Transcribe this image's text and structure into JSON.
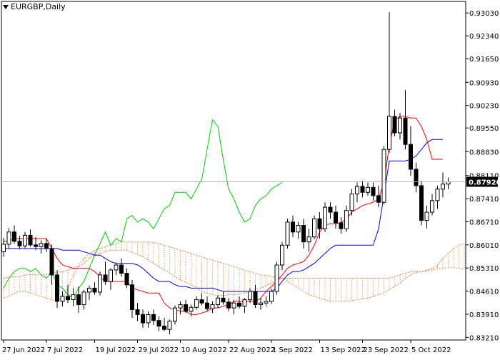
{
  "window": {
    "symbol": "EURGBP",
    "timeframe": "Daily",
    "title": "EURGBP,Daily"
  },
  "colors": {
    "background": "#ffffff",
    "candle_bull_fill": "#ffffff",
    "candle_bear_fill": "#000000",
    "candle_border": "#000000",
    "tenkan": "#ff0000",
    "kijun": "#0000ff",
    "chikou": "#00cc00",
    "cloud": "#e07b39",
    "current_price_line": "#b0b0b0",
    "price_label_bg": "#000000",
    "price_label_text": "#ffffff"
  },
  "chart_data": {
    "type": "candlestick",
    "indicator": "Ichimoku Kinko Hyo",
    "title": "EURGBP,Daily",
    "current_price": "0.87920",
    "y_ticks": [
      "0.93030",
      "0.92340",
      "0.91650",
      "0.90930",
      "0.90230",
      "0.89550",
      "0.88830",
      "0.88110",
      "0.87410",
      "0.86710",
      "0.86010",
      "0.85310",
      "0.84610",
      "0.83910",
      "0.83210"
    ],
    "x_ticks": [
      "27 Jun 2022",
      "7 Jul 2022",
      "19 Jul 2022",
      "29 Jul 2022",
      "10 Aug 2022",
      "22 Aug 2022",
      "1 Sep 2022",
      "13 Sep 2022",
      "23 Sep 2022",
      "5 Oct 2022"
    ],
    "ylim": [
      0.8313,
      0.9338
    ],
    "candles": [
      [
        0.858,
        0.8622,
        0.8565,
        0.8603
      ],
      [
        0.8603,
        0.8652,
        0.859,
        0.864
      ],
      [
        0.864,
        0.866,
        0.8605,
        0.8612
      ],
      [
        0.8612,
        0.8628,
        0.8588,
        0.8598
      ],
      [
        0.8598,
        0.864,
        0.859,
        0.863
      ],
      [
        0.863,
        0.8648,
        0.8595,
        0.8601
      ],
      [
        0.8601,
        0.8625,
        0.8585,
        0.8596
      ],
      [
        0.8596,
        0.8615,
        0.8575,
        0.8605
      ],
      [
        0.8605,
        0.862,
        0.858,
        0.859
      ],
      [
        0.859,
        0.8602,
        0.848,
        0.851
      ],
      [
        0.851,
        0.8525,
        0.841,
        0.843
      ],
      [
        0.843,
        0.846,
        0.8415,
        0.8445
      ],
      [
        0.8445,
        0.848,
        0.8425,
        0.8435
      ],
      [
        0.8435,
        0.847,
        0.8415,
        0.845
      ],
      [
        0.845,
        0.8475,
        0.8395,
        0.842
      ],
      [
        0.842,
        0.8465,
        0.8405,
        0.8458
      ],
      [
        0.8458,
        0.8478,
        0.8435,
        0.847
      ],
      [
        0.847,
        0.8488,
        0.845,
        0.8458
      ],
      [
        0.8458,
        0.852,
        0.8448,
        0.851
      ],
      [
        0.851,
        0.855,
        0.848,
        0.849
      ],
      [
        0.849,
        0.853,
        0.8465,
        0.8525
      ],
      [
        0.8525,
        0.8548,
        0.851,
        0.854
      ],
      [
        0.854,
        0.856,
        0.8505,
        0.8515
      ],
      [
        0.8515,
        0.853,
        0.847,
        0.848
      ],
      [
        0.848,
        0.8495,
        0.838,
        0.8405
      ],
      [
        0.8405,
        0.8425,
        0.837,
        0.839
      ],
      [
        0.839,
        0.8405,
        0.835,
        0.8365
      ],
      [
        0.8365,
        0.84,
        0.835,
        0.839
      ],
      [
        0.839,
        0.8405,
        0.8358,
        0.8372
      ],
      [
        0.8372,
        0.8385,
        0.834,
        0.8355
      ],
      [
        0.8355,
        0.838,
        0.834,
        0.8345
      ],
      [
        0.8345,
        0.8375,
        0.833,
        0.837
      ],
      [
        0.837,
        0.8418,
        0.836,
        0.841
      ],
      [
        0.841,
        0.843,
        0.839,
        0.842
      ],
      [
        0.842,
        0.8435,
        0.8395,
        0.84
      ],
      [
        0.84,
        0.842,
        0.8385,
        0.8412
      ],
      [
        0.8412,
        0.8445,
        0.8405,
        0.8435
      ],
      [
        0.8435,
        0.8455,
        0.8418,
        0.8425
      ],
      [
        0.8425,
        0.8445,
        0.84,
        0.8408
      ],
      [
        0.8408,
        0.843,
        0.8395,
        0.842
      ],
      [
        0.842,
        0.8448,
        0.841,
        0.844
      ],
      [
        0.844,
        0.8458,
        0.842,
        0.8428
      ],
      [
        0.8428,
        0.844,
        0.84,
        0.841
      ],
      [
        0.841,
        0.8435,
        0.839,
        0.8425
      ],
      [
        0.8425,
        0.8445,
        0.8408,
        0.8415
      ],
      [
        0.8415,
        0.844,
        0.8395,
        0.8435
      ],
      [
        0.8435,
        0.847,
        0.8425,
        0.846
      ],
      [
        0.846,
        0.848,
        0.841,
        0.842
      ],
      [
        0.842,
        0.844,
        0.8405,
        0.8425
      ],
      [
        0.8425,
        0.8445,
        0.8415,
        0.843
      ],
      [
        0.843,
        0.8468,
        0.8422,
        0.846
      ],
      [
        0.846,
        0.855,
        0.845,
        0.854
      ],
      [
        0.854,
        0.861,
        0.8525,
        0.86
      ],
      [
        0.86,
        0.868,
        0.859,
        0.867
      ],
      [
        0.867,
        0.869,
        0.8625,
        0.864
      ],
      [
        0.864,
        0.867,
        0.862,
        0.866
      ],
      [
        0.866,
        0.868,
        0.859,
        0.861
      ],
      [
        0.861,
        0.865,
        0.858,
        0.8625
      ],
      [
        0.8625,
        0.869,
        0.8618,
        0.868
      ],
      [
        0.868,
        0.87,
        0.862,
        0.865
      ],
      [
        0.865,
        0.873,
        0.864,
        0.8715
      ],
      [
        0.8715,
        0.873,
        0.868,
        0.87
      ],
      [
        0.87,
        0.872,
        0.865,
        0.8668
      ],
      [
        0.8668,
        0.8685,
        0.8635,
        0.865
      ],
      [
        0.865,
        0.872,
        0.864,
        0.8705
      ],
      [
        0.8705,
        0.877,
        0.869,
        0.8755
      ],
      [
        0.8755,
        0.879,
        0.873,
        0.8778
      ],
      [
        0.8778,
        0.8795,
        0.8745,
        0.876
      ],
      [
        0.876,
        0.879,
        0.875,
        0.8775
      ],
      [
        0.8775,
        0.879,
        0.8735,
        0.875
      ],
      [
        0.875,
        0.878,
        0.8715,
        0.873
      ],
      [
        0.873,
        0.89,
        0.8725,
        0.889
      ],
      [
        0.889,
        0.9305,
        0.888,
        0.899
      ],
      [
        0.899,
        0.901,
        0.893,
        0.894
      ],
      [
        0.894,
        0.9,
        0.892,
        0.8985
      ],
      [
        0.8985,
        0.907,
        0.889,
        0.8905
      ],
      [
        0.8905,
        0.896,
        0.881,
        0.883
      ],
      [
        0.883,
        0.885,
        0.876,
        0.878
      ],
      [
        0.878,
        0.8795,
        0.866,
        0.8675
      ],
      [
        0.8675,
        0.872,
        0.865,
        0.87
      ],
      [
        0.87,
        0.8755,
        0.869,
        0.8735
      ],
      [
        0.8735,
        0.878,
        0.871,
        0.877
      ],
      [
        0.877,
        0.882,
        0.8745,
        0.8785
      ],
      [
        0.8785,
        0.8805,
        0.877,
        0.8792
      ]
    ],
    "tenkan_sen": [
      0.8612,
      0.8612,
      0.862,
      0.862,
      0.862,
      0.862,
      0.862,
      0.862,
      0.862,
      0.859,
      0.856,
      0.854,
      0.8535,
      0.853,
      0.853,
      0.853,
      0.853,
      0.852,
      0.8505,
      0.849,
      0.849,
      0.849,
      0.849,
      0.849,
      0.847,
      0.8465,
      0.846,
      0.8455,
      0.8455,
      0.8455,
      0.8425,
      0.841,
      0.8405,
      0.84,
      0.84,
      0.839,
      0.839,
      0.8395,
      0.84,
      0.841,
      0.841,
      0.8415,
      0.842,
      0.843,
      0.843,
      0.843,
      0.843,
      0.843,
      0.844,
      0.846,
      0.8475,
      0.849,
      0.851,
      0.853,
      0.854,
      0.8545,
      0.855,
      0.857,
      0.86,
      0.864,
      0.866,
      0.8665,
      0.8665,
      0.8668,
      0.868,
      0.87,
      0.871,
      0.872,
      0.8725,
      0.873,
      0.874,
      0.879,
      0.89,
      0.898,
      0.899,
      0.899,
      0.8985,
      0.8985,
      0.896,
      0.892,
      0.886,
      0.886,
      0.886
    ],
    "kijun_sen": [
      0.859,
      0.859,
      0.859,
      0.859,
      0.859,
      0.859,
      0.859,
      0.859,
      0.859,
      0.859,
      0.859,
      0.8585,
      0.8585,
      0.8585,
      0.8585,
      0.858,
      0.8575,
      0.857,
      0.857,
      0.856,
      0.855,
      0.8545,
      0.8545,
      0.8545,
      0.8545,
      0.854,
      0.853,
      0.8515,
      0.85,
      0.849,
      0.849,
      0.849,
      0.848,
      0.8475,
      0.8475,
      0.847,
      0.847,
      0.847,
      0.847,
      0.847,
      0.8465,
      0.846,
      0.846,
      0.846,
      0.846,
      0.846,
      0.846,
      0.846,
      0.846,
      0.846,
      0.846,
      0.847,
      0.849,
      0.851,
      0.852,
      0.852,
      0.8525,
      0.8535,
      0.8545,
      0.856,
      0.8575,
      0.859,
      0.86,
      0.86,
      0.86,
      0.86,
      0.86,
      0.86,
      0.86,
      0.86,
      0.865,
      0.875,
      0.8855,
      0.8855,
      0.8855,
      0.8855,
      0.886,
      0.887,
      0.889,
      0.891,
      0.892,
      0.892,
      0.892
    ],
    "chikou_span": [
      0.847,
      0.85,
      0.852,
      0.853,
      0.853,
      0.852,
      0.853,
      0.851,
      0.85,
      0.852,
      0.848,
      0.847,
      0.845,
      0.844,
      0.847,
      0.849,
      0.853,
      0.857,
      0.8605,
      0.864,
      0.86,
      0.862,
      0.861,
      0.868,
      0.869,
      0.867,
      0.868,
      0.867,
      0.865,
      0.868,
      0.871,
      0.872,
      0.876,
      0.876,
      0.876,
      0.874,
      0.877,
      0.88,
      0.889,
      0.898,
      0.896,
      0.886,
      0.877,
      0.874,
      0.87,
      0.867,
      0.868,
      0.872,
      0.874,
      0.875,
      0.877,
      0.878,
      0.879
    ],
    "senkou_span_a": [
      0.85,
      0.8502,
      0.8505,
      0.8505,
      0.851,
      0.8512,
      0.851,
      0.851,
      0.8512,
      0.8515,
      0.8518,
      0.852,
      0.8525,
      0.853,
      0.8535,
      0.8545,
      0.856,
      0.857,
      0.8575,
      0.858,
      0.8585,
      0.8585,
      0.8585,
      0.8585,
      0.8578,
      0.8572,
      0.8565,
      0.8555,
      0.8545,
      0.8535,
      0.8525,
      0.8515,
      0.8505,
      0.8495,
      0.8488,
      0.848,
      0.8472,
      0.846,
      0.8455,
      0.845,
      0.8448,
      0.8448,
      0.845,
      0.845,
      0.8452,
      0.8455,
      0.846,
      0.8465,
      0.847,
      0.8478,
      0.8485,
      0.8492,
      0.85,
      0.85,
      0.85,
      0.85,
      0.85,
      0.85,
      0.85,
      0.85,
      0.85,
      0.85,
      0.85,
      0.85,
      0.85,
      0.85,
      0.85,
      0.85,
      0.85,
      0.85,
      0.85,
      0.85,
      0.85,
      0.8505,
      0.851,
      0.8515,
      0.852,
      0.852,
      0.852,
      0.8525,
      0.853,
      0.854,
      0.856,
      0.8575,
      0.859,
      0.86,
      0.8605,
      0.861,
      0.862,
      0.864,
      0.8655,
      0.8665,
      0.867
    ],
    "senkou_span_b": [
      0.844,
      0.8445,
      0.8455,
      0.846,
      0.846,
      0.8455,
      0.845,
      0.8445,
      0.844,
      0.8435,
      0.843,
      0.844,
      0.847,
      0.8505,
      0.854,
      0.856,
      0.8575,
      0.8585,
      0.859,
      0.8595,
      0.86,
      0.8605,
      0.861,
      0.861,
      0.861,
      0.861,
      0.861,
      0.861,
      0.8608,
      0.8605,
      0.86,
      0.8595,
      0.859,
      0.8585,
      0.858,
      0.8575,
      0.857,
      0.8565,
      0.856,
      0.8555,
      0.855,
      0.8545,
      0.854,
      0.8535,
      0.853,
      0.8525,
      0.852,
      0.8515,
      0.851,
      0.8508,
      0.8505,
      0.8502,
      0.85,
      0.849,
      0.848,
      0.847,
      0.846,
      0.845,
      0.8445,
      0.844,
      0.8435,
      0.843,
      0.843,
      0.843,
      0.843,
      0.8432,
      0.8435,
      0.8438,
      0.844,
      0.8445,
      0.845,
      0.8455,
      0.8465,
      0.8475,
      0.8485,
      0.85,
      0.851,
      0.8518,
      0.852,
      0.8522,
      0.8525,
      0.8528,
      0.853,
      0.8532,
      0.8532,
      0.853,
      0.8528,
      0.8528,
      0.8528,
      0.8528,
      0.8528,
      0.8528,
      0.8528
    ],
    "grid": false,
    "legend": "none"
  }
}
